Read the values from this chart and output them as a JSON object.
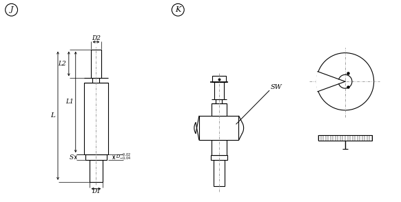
{
  "bg_color": "#ffffff",
  "line_color": "#000000",
  "label_J": "J",
  "label_K": "K",
  "label_D2": "D2",
  "label_L2": "L2",
  "label_L1": "L1",
  "label_L": "L",
  "label_S": "S",
  "label_D1": "D1",
  "label_SW": "SW",
  "font_size": 6.5
}
